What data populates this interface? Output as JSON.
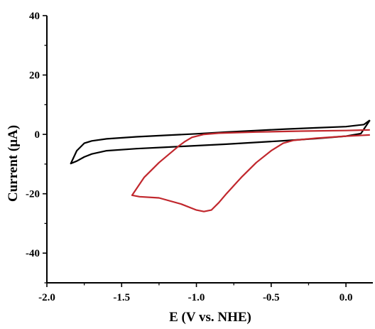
{
  "chart_data": {
    "type": "line",
    "xlabel": "E (V vs. NHE)",
    "ylabel": "Current (μA)",
    "xlim": [
      -2.0,
      0.18
    ],
    "ylim": [
      -50,
      40
    ],
    "x_ticks": [
      "-2.0",
      "-1.5",
      "-1.0",
      "-0.5",
      "0.0"
    ],
    "x_tick_values": [
      -2.0,
      -1.5,
      -1.0,
      -0.5,
      0.0
    ],
    "y_ticks": [
      "40",
      "20",
      "0",
      "-20",
      "-40"
    ],
    "y_tick_values": [
      40,
      20,
      0,
      -20,
      -40
    ],
    "grid": false,
    "series": [
      {
        "color": "#000000",
        "points": [
          [
            0.16,
            4.8
          ],
          [
            0.12,
            3.3
          ],
          [
            0.0,
            2.6
          ],
          [
            -0.2,
            2.2
          ],
          [
            -0.4,
            1.8
          ],
          [
            -0.6,
            1.3
          ],
          [
            -0.8,
            0.8
          ],
          [
            -1.0,
            0.2
          ],
          [
            -1.2,
            -0.3
          ],
          [
            -1.4,
            -0.8
          ],
          [
            -1.6,
            -1.5
          ],
          [
            -1.7,
            -2.2
          ],
          [
            -1.75,
            -3.0
          ],
          [
            -1.8,
            -5.5
          ],
          [
            -1.84,
            -9.8
          ],
          [
            -1.8,
            -9.0
          ],
          [
            -1.75,
            -7.6
          ],
          [
            -1.7,
            -6.6
          ],
          [
            -1.6,
            -5.5
          ],
          [
            -1.4,
            -4.8
          ],
          [
            -1.2,
            -4.3
          ],
          [
            -1.0,
            -3.8
          ],
          [
            -0.8,
            -3.3
          ],
          [
            -0.6,
            -2.7
          ],
          [
            -0.4,
            -2.1
          ],
          [
            -0.2,
            -1.4
          ],
          [
            0.0,
            -0.6
          ],
          [
            0.1,
            0.3
          ],
          [
            0.16,
            4.8
          ]
        ]
      },
      {
        "color": "#c1272d",
        "points": [
          [
            0.16,
            1.5
          ],
          [
            0.0,
            1.3
          ],
          [
            -0.3,
            1.1
          ],
          [
            -0.6,
            0.8
          ],
          [
            -0.85,
            0.4
          ],
          [
            -0.95,
            0.0
          ],
          [
            -1.03,
            -1.0
          ],
          [
            -1.08,
            -2.5
          ],
          [
            -1.12,
            -4.0
          ],
          [
            -1.25,
            -9.5
          ],
          [
            -1.35,
            -14.5
          ],
          [
            -1.43,
            -20.5
          ],
          [
            -1.38,
            -21.0
          ],
          [
            -1.25,
            -21.4
          ],
          [
            -1.1,
            -23.5
          ],
          [
            -1.0,
            -25.5
          ],
          [
            -0.95,
            -26.0
          ],
          [
            -0.9,
            -25.5
          ],
          [
            -0.85,
            -23.0
          ],
          [
            -0.8,
            -20.0
          ],
          [
            -0.7,
            -14.5
          ],
          [
            -0.6,
            -9.5
          ],
          [
            -0.5,
            -5.5
          ],
          [
            -0.42,
            -3.0
          ],
          [
            -0.35,
            -2.0
          ],
          [
            -0.2,
            -1.3
          ],
          [
            0.0,
            -0.6
          ],
          [
            0.16,
            -0.2
          ]
        ]
      }
    ]
  }
}
